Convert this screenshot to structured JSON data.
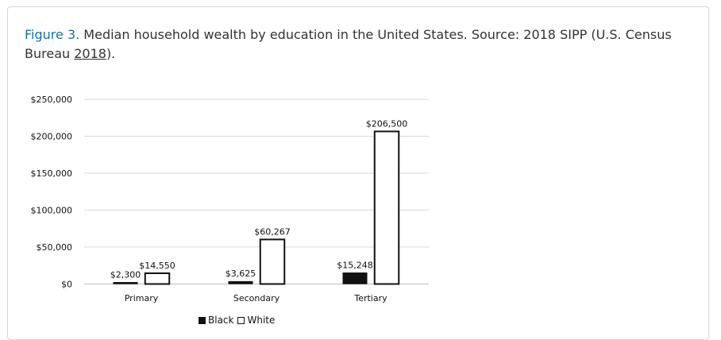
{
  "caption": {
    "figure_label": "Figure 3.",
    "text": " Median household wealth by education in the United States. Source: 2018 SIPP (U.S. Census Bureau ",
    "link_text": "2018",
    "suffix": ")."
  },
  "colors": {
    "black": "#111111",
    "white": "#ffffff",
    "grid": "#d9d9d9",
    "figure_label": "#1a73a8"
  },
  "chart_data": {
    "type": "bar",
    "categories": [
      "Primary",
      "Secondary",
      "Tertiary"
    ],
    "series": [
      {
        "name": "Black",
        "values": [
          2300,
          3625,
          15248
        ],
        "labels": [
          "$2,300",
          "$3,625",
          "$15,248"
        ]
      },
      {
        "name": "White",
        "values": [
          14550,
          60267,
          206500
        ],
        "labels": [
          "$14,550",
          "$60,267",
          "$206,500"
        ]
      }
    ],
    "ylim": [
      0,
      250000
    ],
    "yticks": [
      0,
      50000,
      100000,
      150000,
      200000,
      250000
    ],
    "ytick_labels": [
      "$0",
      "$50,000",
      "$100,000",
      "$150,000",
      "$200,000",
      "$250,000"
    ],
    "grid": true,
    "legend_position": "bottom"
  }
}
